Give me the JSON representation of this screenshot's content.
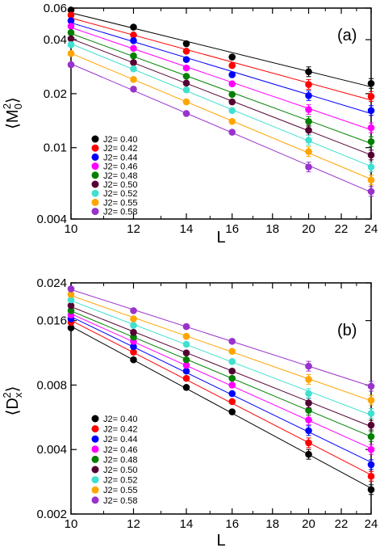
{
  "chart_data": [
    {
      "type": "scatter",
      "panel_label": "(a)",
      "title": "",
      "xlabel": "L",
      "ylabel": "⟨M0²⟩",
      "ylabel_main": "M",
      "ylabel_sup": "2",
      "ylabel_sub": "0",
      "y_scale": "log",
      "x_scale": "log",
      "xlim": [
        10,
        24
      ],
      "ylim": [
        0.004,
        0.06
      ],
      "x_ticks": [
        10,
        12,
        14,
        16,
        18,
        20,
        22,
        24
      ],
      "x_tick_labels": [
        "10",
        "12",
        "14",
        "16",
        "18",
        "20",
        "22",
        "24"
      ],
      "y_ticks": [
        0.004,
        0.01,
        0.02,
        0.04,
        0.06
      ],
      "y_tick_labels": [
        "0.004",
        "0.01",
        "0.02",
        "0.04",
        "0.06"
      ],
      "legend_placement": "left",
      "grid": false,
      "x": [
        10,
        12,
        14,
        16,
        20,
        24
      ],
      "series": [
        {
          "name": "J2= 0.40",
          "color": "#000000",
          "values": [
            0.0585,
            0.047,
            0.038,
            0.032,
            0.0265,
            0.0228
          ]
        },
        {
          "name": "J2= 0.42",
          "color": "#ff0000",
          "values": [
            0.0548,
            0.0425,
            0.0345,
            0.0287,
            0.0225,
            0.0193
          ]
        },
        {
          "name": "J2= 0.44",
          "color": "#0000ff",
          "values": [
            0.051,
            0.0395,
            0.031,
            0.0255,
            0.0195,
            0.0161
          ]
        },
        {
          "name": "J2= 0.46",
          "color": "#ff00ff",
          "values": [
            0.0475,
            0.0358,
            0.0278,
            0.0227,
            0.0163,
            0.0129
          ]
        },
        {
          "name": "J2= 0.48",
          "color": "#008000",
          "values": [
            0.0438,
            0.0325,
            0.025,
            0.0198,
            0.014,
            0.0108
          ]
        },
        {
          "name": "J2= 0.50",
          "color": "#550033",
          "values": [
            0.0405,
            0.0298,
            0.0229,
            0.018,
            0.0125,
            0.0091
          ]
        },
        {
          "name": "J2= 0.52",
          "color": "#40e0d0",
          "values": [
            0.0375,
            0.0275,
            0.021,
            0.0161,
            0.011,
            0.0078
          ]
        },
        {
          "name": "J2= 0.55",
          "color": "#ffa500",
          "values": [
            0.0335,
            0.024,
            0.018,
            0.014,
            0.0095,
            0.0066
          ]
        },
        {
          "name": "J2= 0.58",
          "color": "#9932cc",
          "values": [
            0.029,
            0.0212,
            0.0155,
            0.0122,
            0.0078,
            0.0057
          ]
        }
      ]
    },
    {
      "type": "scatter",
      "panel_label": "(b)",
      "title": "",
      "xlabel": "L",
      "ylabel": "⟨Dx²⟩",
      "ylabel_main": "D",
      "ylabel_sup": "2",
      "ylabel_sub": "x",
      "y_scale": "log",
      "x_scale": "log",
      "xlim": [
        10,
        24
      ],
      "ylim": [
        0.002,
        0.024
      ],
      "x_ticks": [
        10,
        12,
        14,
        16,
        18,
        20,
        22,
        24
      ],
      "x_tick_labels": [
        "10",
        "12",
        "14",
        "16",
        "18",
        "20",
        "22",
        "24"
      ],
      "y_ticks": [
        0.002,
        0.004,
        0.008,
        0.016,
        0.024
      ],
      "y_tick_labels": [
        "0.002",
        "0.004",
        "0.008",
        "0.016",
        "0.024"
      ],
      "legend_placement": "bottom-left",
      "grid": false,
      "x": [
        10,
        12,
        14,
        16,
        20,
        24
      ],
      "series": [
        {
          "name": "J2= 0.40",
          "color": "#000000",
          "values": [
            0.0148,
            0.0105,
            0.0078,
            0.006,
            0.0038,
            0.0026
          ]
        },
        {
          "name": "J2= 0.42",
          "color": "#ff0000",
          "values": [
            0.0157,
            0.0114,
            0.0086,
            0.0067,
            0.0043,
            0.003
          ]
        },
        {
          "name": "J2= 0.44",
          "color": "#0000ff",
          "values": [
            0.0163,
            0.0121,
            0.0093,
            0.0073,
            0.0049,
            0.0034
          ]
        },
        {
          "name": "J2= 0.46",
          "color": "#ff00ff",
          "values": [
            0.017,
            0.0128,
            0.0099,
            0.008,
            0.0055,
            0.004
          ]
        },
        {
          "name": "J2= 0.48",
          "color": "#008000",
          "values": [
            0.0178,
            0.0134,
            0.0105,
            0.0086,
            0.0061,
            0.0046
          ]
        },
        {
          "name": "J2= 0.50",
          "color": "#550033",
          "values": [
            0.0188,
            0.0141,
            0.0113,
            0.0093,
            0.0066,
            0.0052
          ]
        },
        {
          "name": "J2= 0.52",
          "color": "#40e0d0",
          "values": [
            0.02,
            0.0152,
            0.0124,
            0.0103,
            0.0073,
            0.0059
          ]
        },
        {
          "name": "J2= 0.55",
          "color": "#ffa500",
          "values": [
            0.0212,
            0.0163,
            0.0135,
            0.0115,
            0.0085,
            0.0068
          ]
        },
        {
          "name": "J2= 0.58",
          "color": "#9932cc",
          "values": [
            0.0225,
            0.0178,
            0.015,
            0.0128,
            0.0098,
            0.0079
          ]
        }
      ]
    }
  ]
}
